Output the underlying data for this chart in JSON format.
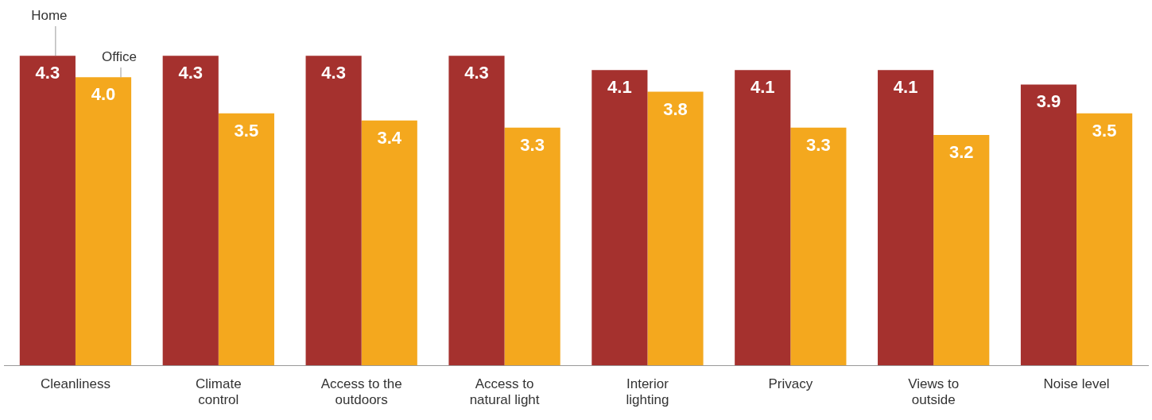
{
  "chart_data": {
    "type": "bar",
    "categories": [
      "Cleanliness",
      "Climate control",
      "Access to the outdoors",
      "Access to natural light",
      "Interior lighting",
      "Privacy",
      "Views to outside",
      "Noise level"
    ],
    "series": [
      {
        "name": "Home",
        "color": "#a5312e",
        "values": [
          4.3,
          4.3,
          4.3,
          4.3,
          4.1,
          4.1,
          4.1,
          3.9
        ],
        "value_labels": [
          "4.3",
          "4.3",
          "4.3",
          "4.3",
          "4.1",
          "4.1",
          "4.1",
          "3.9"
        ]
      },
      {
        "name": "Office",
        "color": "#f4a81e",
        "values": [
          4.0,
          3.5,
          3.4,
          3.3,
          3.8,
          3.3,
          3.2,
          3.5
        ],
        "value_labels": [
          "4.0",
          "3.5",
          "3.4",
          "3.3",
          "3.8",
          "3.3",
          "3.2",
          "3.5"
        ]
      }
    ],
    "tick_labels": "x",
    "grid": false,
    "legend": false
  }
}
